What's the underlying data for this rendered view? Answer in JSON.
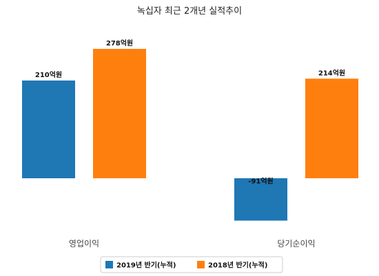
{
  "chart_data": {
    "type": "bar",
    "title": "녹십자 최근 2개년 실적추이",
    "xlabel": "",
    "ylabel": "",
    "categories": [
      "영업이익",
      "당기순이익"
    ],
    "series": [
      {
        "name": "2019년 반기(누적)",
        "values": [
          210,
          -91
        ],
        "labels": [
          "210억원",
          "-91억원"
        ],
        "color": "#1f77b4"
      },
      {
        "name": "2018년 반기(누적)",
        "values": [
          278,
          214
        ],
        "labels": [
          "278억원",
          "214억원"
        ],
        "color": "#ff7f0e"
      }
    ],
    "ylim": [
      -95,
      280
    ],
    "grid": false,
    "legend": "bottom-center"
  }
}
